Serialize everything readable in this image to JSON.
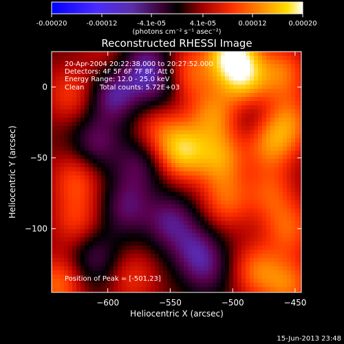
{
  "colorbar": {
    "ticks": [
      "-0.00020",
      "-0.00012",
      "-4.1e-05",
      "4.1e-05",
      "0.00012",
      "0.00020"
    ],
    "tick_values": [
      -0.0002,
      -0.00012,
      -4.1e-05,
      4.1e-05,
      0.00012,
      0.0002
    ],
    "range": [
      -0.0002,
      0.0002
    ],
    "unit_label": "(photons cm⁻² s⁻¹ asec⁻²)",
    "colors": [
      "#0000ff",
      "#5a2fc0",
      "#5a0050",
      "#000000",
      "#b00000",
      "#ff3000",
      "#ff8800",
      "#ffd000",
      "#ffffff"
    ]
  },
  "chart_data": {
    "type": "heatmap",
    "title": "Reconstructed RHESSI Image",
    "xlabel": "Heliocentric X (arcsec)",
    "ylabel": "Heliocentric Y (arcsec)",
    "xlim": [
      -645,
      -445
    ],
    "ylim": [
      -145,
      25
    ],
    "x_ticks": [
      -600,
      -550,
      -500,
      -450
    ],
    "y_ticks": [
      0,
      -50,
      -100
    ],
    "x_tick_labels": [
      "−600",
      "−550",
      "−500",
      "−450"
    ],
    "y_tick_labels": [
      "0",
      "−50",
      "−100"
    ],
    "colorscale_range": [
      -0.0002,
      0.0002
    ],
    "annotations": {
      "time": "20-Apr-2004 20:22:38.000 to 20:27:52.000",
      "detectors": "Detectors: 4F 5F 6F 7F 8F, Att 0",
      "energy": "Energy Range: 12.0 - 25.0 keV",
      "clean_label": "Clean",
      "counts": "Total counts: 5.72E+03",
      "peak": "Position of Peak = [-501,23]"
    },
    "peak_position": [
      -501,
      23
    ],
    "sources": [
      {
        "x": -501,
        "y": 23,
        "amplitude": 1.0
      },
      {
        "x": -490,
        "y": 5,
        "amplitude": 0.7
      },
      {
        "x": -515,
        "y": -20,
        "amplitude": 0.55
      },
      {
        "x": -540,
        "y": -45,
        "amplitude": 0.8
      },
      {
        "x": -510,
        "y": -50,
        "amplitude": 0.6
      },
      {
        "x": -470,
        "y": -40,
        "amplitude": 0.55
      },
      {
        "x": -455,
        "y": -25,
        "amplitude": 0.5
      },
      {
        "x": -460,
        "y": 10,
        "amplitude": 0.5
      },
      {
        "x": -535,
        "y": 10,
        "amplitude": 0.45
      },
      {
        "x": -560,
        "y": -30,
        "amplitude": 0.35
      },
      {
        "x": -505,
        "y": -80,
        "amplitude": 0.45
      },
      {
        "x": -470,
        "y": -75,
        "amplitude": 0.4
      },
      {
        "x": -455,
        "y": -100,
        "amplitude": 0.45
      },
      {
        "x": -480,
        "y": -130,
        "amplitude": 0.5
      },
      {
        "x": -455,
        "y": -140,
        "amplitude": 0.5
      },
      {
        "x": -630,
        "y": -5,
        "amplitude": 0.35
      },
      {
        "x": -625,
        "y": -65,
        "amplitude": 0.4
      },
      {
        "x": -625,
        "y": -95,
        "amplitude": 0.35
      },
      {
        "x": -640,
        "y": -140,
        "amplitude": 0.5
      },
      {
        "x": -580,
        "y": -135,
        "amplitude": 0.3
      },
      {
        "x": -600,
        "y": 20,
        "amplitude": 0.2
      },
      {
        "x": -595,
        "y": -5,
        "amplitude": -0.55
      },
      {
        "x": -570,
        "y": 15,
        "amplitude": -0.45
      },
      {
        "x": -610,
        "y": -40,
        "amplitude": -0.4
      },
      {
        "x": -575,
        "y": -55,
        "amplitude": -0.35
      },
      {
        "x": -585,
        "y": -85,
        "amplitude": -0.4
      },
      {
        "x": -550,
        "y": -95,
        "amplitude": -0.45
      },
      {
        "x": -530,
        "y": -115,
        "amplitude": -0.4
      },
      {
        "x": -610,
        "y": -120,
        "amplitude": -0.35
      },
      {
        "x": -520,
        "y": -130,
        "amplitude": -0.3
      },
      {
        "x": -485,
        "y": -20,
        "amplitude": -0.2
      },
      {
        "x": -560,
        "y": 0,
        "amplitude": -0.3
      }
    ]
  },
  "footer": {
    "date": "15-Jun-2013 23:48"
  }
}
